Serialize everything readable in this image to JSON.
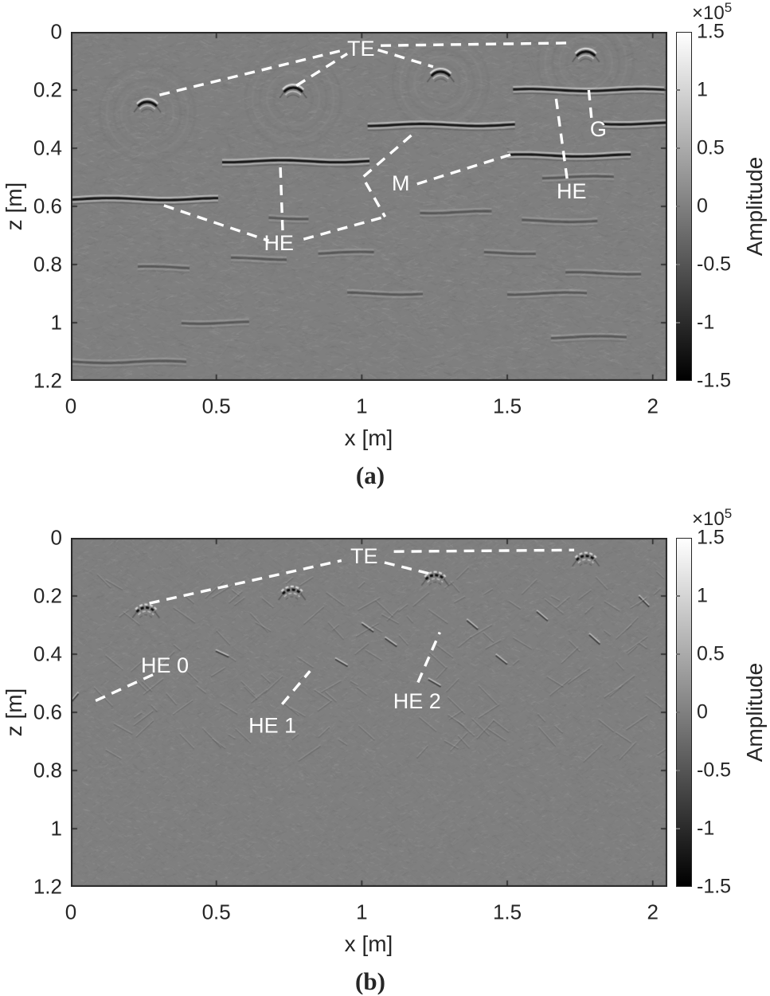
{
  "chart_data": [
    {
      "panel_label": "(a)",
      "type": "heatmap",
      "image_kind": "migrated GPR amplitude section",
      "xlabel": "x [m]",
      "ylabel": "z [m]",
      "x_range": [
        0,
        2.05
      ],
      "z_range": [
        0,
        1.2
      ],
      "x_ticks": [
        "0",
        "0.5",
        "1",
        "1.5",
        "2"
      ],
      "x_tick_values": [
        0,
        0.5,
        1,
        1.5,
        2
      ],
      "z_ticks": [
        "0",
        "0.2",
        "0.4",
        "0.6",
        "0.8",
        "1",
        "1.2"
      ],
      "z_tick_values": [
        0,
        0.2,
        0.4,
        0.6,
        0.8,
        1,
        1.2
      ],
      "colorbar": {
        "label": "Amplitude",
        "scale_base": "×10",
        "scale_exp": "5",
        "tick_labels": [
          "1.5",
          "1",
          "0.5",
          "0",
          "-0.5",
          "-1",
          "-1.5"
        ],
        "tick_values": [
          1.5,
          1,
          0.5,
          0,
          -0.5,
          -1,
          -1.5
        ],
        "range": [
          -1.5,
          1.5
        ],
        "colormap": "gray"
      },
      "annotations": [
        {
          "label": "TE",
          "x": 0.997,
          "z": 0.057
        },
        {
          "label": "G",
          "x": 1.813,
          "z": 0.334
        },
        {
          "label": "HE",
          "x": 1.721,
          "z": 0.548
        },
        {
          "label": "M",
          "x": 1.134,
          "z": 0.521
        },
        {
          "label": "HE",
          "x": 0.715,
          "z": 0.726
        }
      ],
      "leader_lines": [
        [
          [
            0.305,
            0.217
          ],
          [
            0.94,
            0.062
          ]
        ],
        [
          [
            0.775,
            0.185
          ],
          [
            0.95,
            0.075
          ]
        ],
        [
          [
            1.065,
            0.047
          ],
          [
            1.72,
            0.038
          ]
        ],
        [
          [
            1.055,
            0.062
          ],
          [
            1.245,
            0.12
          ]
        ],
        [
          [
            1.78,
            0.2
          ],
          [
            1.79,
            0.302
          ]
        ],
        [
          [
            1.668,
            0.23
          ],
          [
            1.706,
            0.508
          ]
        ],
        [
          [
            1.19,
            0.523
          ],
          [
            1.518,
            0.42
          ]
        ],
        [
          [
            1.17,
            0.356
          ],
          [
            1.003,
            0.5
          ],
          [
            1.08,
            0.636
          ]
        ],
        [
          [
            0.72,
            0.466
          ],
          [
            0.728,
            0.685
          ]
        ],
        [
          [
            0.32,
            0.597
          ],
          [
            0.68,
            0.718
          ]
        ],
        [
          [
            0.8,
            0.713
          ],
          [
            1.075,
            0.637
          ]
        ]
      ],
      "hyperbolas": [
        [
          0.263,
          0.241
        ],
        [
          0.764,
          0.192
        ],
        [
          1.271,
          0.137
        ],
        [
          1.77,
          0.068
        ]
      ],
      "reflectors_strong": [
        [
          0.0,
          0.52,
          0.575
        ],
        [
          0.52,
          1.03,
          0.445
        ],
        [
          1.02,
          1.54,
          0.32
        ],
        [
          1.5,
          1.93,
          0.425
        ],
        [
          1.52,
          2.05,
          0.2
        ],
        [
          1.83,
          2.05,
          0.315
        ]
      ],
      "reflectors_faint": [
        [
          0.23,
          0.42,
          0.81
        ],
        [
          0.38,
          0.62,
          1.0
        ],
        [
          0.0,
          0.4,
          1.135
        ],
        [
          0.68,
          0.82,
          0.64
        ],
        [
          1.2,
          1.45,
          0.62
        ],
        [
          0.95,
          1.22,
          0.9
        ],
        [
          1.5,
          1.78,
          0.9
        ],
        [
          1.62,
          1.88,
          0.5
        ],
        [
          1.55,
          1.82,
          0.65
        ],
        [
          1.7,
          1.97,
          0.83
        ],
        [
          1.65,
          1.92,
          1.05
        ],
        [
          0.85,
          1.05,
          0.76
        ],
        [
          1.42,
          1.6,
          0.76
        ],
        [
          0.55,
          0.75,
          0.78
        ]
      ],
      "streaks": [],
      "seed": 11,
      "style": "smooth"
    },
    {
      "panel_label": "(b)",
      "type": "heatmap",
      "image_kind": "migrated GPR amplitude section",
      "xlabel": "x [m]",
      "ylabel": "z [m]",
      "x_range": [
        0,
        2.05
      ],
      "z_range": [
        0,
        1.2
      ],
      "x_ticks": [
        "0",
        "0.5",
        "1",
        "1.5",
        "2"
      ],
      "x_tick_values": [
        0,
        0.5,
        1,
        1.5,
        2
      ],
      "z_ticks": [
        "0",
        "0.2",
        "0.4",
        "0.6",
        "0.8",
        "1",
        "1.2"
      ],
      "z_tick_values": [
        0,
        0.2,
        0.4,
        0.6,
        0.8,
        1,
        1.2
      ],
      "colorbar": {
        "label": "Amplitude",
        "scale_base": "×10",
        "scale_exp": "5",
        "tick_labels": [
          "1.5",
          "1",
          "0.5",
          "0",
          "-0.5",
          "-1",
          "-1.5"
        ],
        "tick_values": [
          1.5,
          1,
          0.5,
          0,
          -0.5,
          -1,
          -1.5
        ],
        "range": [
          -1.5,
          1.5
        ],
        "colormap": "gray"
      },
      "annotations": [
        {
          "label": "TE",
          "x": 1.008,
          "z": 0.063
        },
        {
          "label": "HE 0",
          "x": 0.323,
          "z": 0.438
        },
        {
          "label": "HE 1",
          "x": 0.693,
          "z": 0.645
        },
        {
          "label": "HE 2",
          "x": 1.19,
          "z": 0.562
        }
      ],
      "leader_lines": [
        [
          [
            0.27,
            0.225
          ],
          [
            0.93,
            0.078
          ]
        ],
        [
          [
            1.11,
            0.047
          ],
          [
            1.73,
            0.042
          ]
        ],
        [
          [
            1.078,
            0.085
          ],
          [
            1.24,
            0.125
          ]
        ],
        [
          [
            0.085,
            0.56
          ],
          [
            0.283,
            0.47
          ]
        ],
        [
          [
            0.726,
            0.572
          ],
          [
            0.822,
            0.458
          ]
        ],
        [
          [
            1.193,
            0.497
          ],
          [
            1.268,
            0.325
          ]
        ]
      ],
      "hyperbolas": [
        [
          0.258,
          0.24
        ],
        [
          0.76,
          0.178
        ],
        [
          1.252,
          0.128
        ],
        [
          1.77,
          0.062
        ]
      ],
      "reflectors_strong": [],
      "reflectors_faint": [],
      "streaks": [
        [
          0.01,
          0.555,
          -50
        ],
        [
          1.02,
          0.31,
          35
        ],
        [
          1.1,
          0.36,
          35
        ],
        [
          0.93,
          0.43,
          30
        ],
        [
          1.38,
          0.3,
          40
        ],
        [
          1.62,
          0.27,
          40
        ],
        [
          1.97,
          0.22,
          45
        ],
        [
          0.52,
          0.4,
          25
        ],
        [
          1.25,
          0.5,
          30
        ],
        [
          1.48,
          0.42,
          38
        ],
        [
          1.8,
          0.35,
          42
        ]
      ],
      "seed": 29,
      "style": "sharp"
    }
  ]
}
